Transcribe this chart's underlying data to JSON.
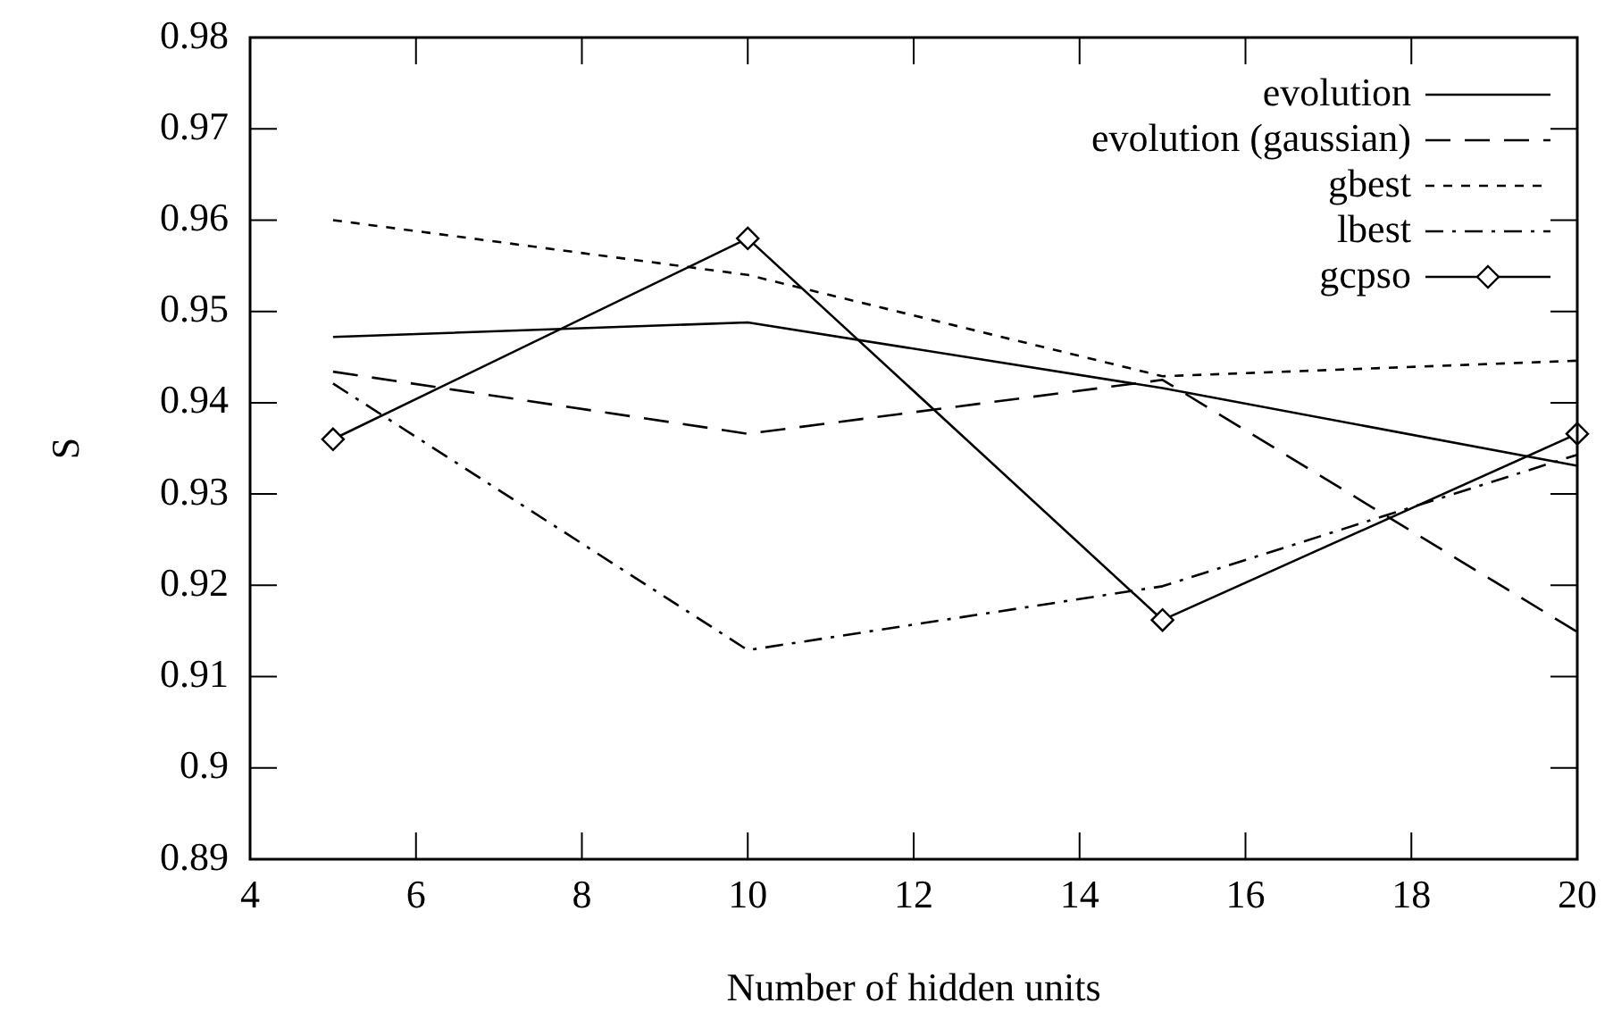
{
  "chart_data": {
    "type": "line",
    "xlabel": "Number of hidden units",
    "ylabel": "S",
    "x": [
      5,
      10,
      15,
      20
    ],
    "xlim": [
      4,
      20
    ],
    "xticks": [
      4,
      6,
      8,
      10,
      12,
      14,
      16,
      18,
      20
    ],
    "ylim": [
      0.89,
      0.98
    ],
    "yticks": [
      0.89,
      0.9,
      0.91,
      0.92,
      0.93,
      0.94,
      0.95,
      0.96,
      0.97,
      0.98
    ],
    "grid": false,
    "legend": "top right",
    "series": [
      {
        "name": "evolution",
        "color": "#000000",
        "line_style": "solid",
        "marker": "none",
        "values": [
          0.9472,
          0.9488,
          0.9416,
          0.9331
        ]
      },
      {
        "name": "evolution (gaussian)",
        "color": "#000000",
        "line_style": "dashed",
        "marker": "none",
        "values": [
          0.9434,
          0.9366,
          0.9425,
          0.9149
        ]
      },
      {
        "name": "gbest",
        "color": "#000000",
        "line_style": "dotted",
        "marker": "none",
        "values": [
          0.96,
          0.954,
          0.9429,
          0.9446
        ]
      },
      {
        "name": "lbest",
        "color": "#000000",
        "line_style": "dashdot",
        "marker": "none",
        "values": [
          0.9421,
          0.9129,
          0.9199,
          0.9343
        ]
      },
      {
        "name": "gcpso",
        "color": "#000000",
        "line_style": "solid",
        "marker": "diamond",
        "values": [
          0.936,
          0.958,
          0.9162,
          0.9366
        ]
      }
    ]
  }
}
